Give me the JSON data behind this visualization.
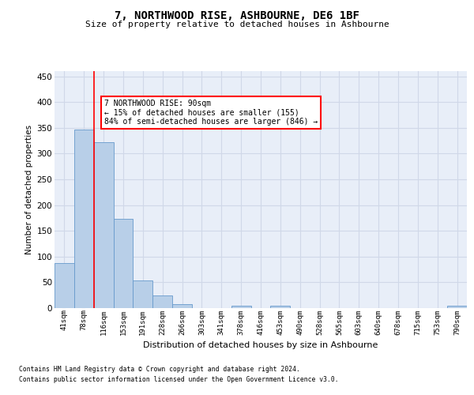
{
  "title1": "7, NORTHWOOD RISE, ASHBOURNE, DE6 1BF",
  "title2": "Size of property relative to detached houses in Ashbourne",
  "xlabel": "Distribution of detached houses by size in Ashbourne",
  "ylabel": "Number of detached properties",
  "categories": [
    "41sqm",
    "78sqm",
    "116sqm",
    "153sqm",
    "191sqm",
    "228sqm",
    "266sqm",
    "303sqm",
    "341sqm",
    "378sqm",
    "416sqm",
    "453sqm",
    "490sqm",
    "528sqm",
    "565sqm",
    "603sqm",
    "640sqm",
    "678sqm",
    "715sqm",
    "753sqm",
    "790sqm"
  ],
  "values": [
    88,
    347,
    322,
    174,
    53,
    25,
    8,
    0,
    0,
    5,
    0,
    4,
    0,
    0,
    0,
    0,
    0,
    0,
    0,
    0,
    4
  ],
  "bar_color": "#b8cfe8",
  "bar_edge_color": "#6699cc",
  "red_line_x": 1.5,
  "annotation_line1": "7 NORTHWOOD RISE: 90sqm",
  "annotation_line2": "← 15% of detached houses are smaller (155)",
  "annotation_line3": "84% of semi-detached houses are larger (846) →",
  "annotation_box_facecolor": "white",
  "annotation_box_edgecolor": "red",
  "footnote1": "Contains HM Land Registry data © Crown copyright and database right 2024.",
  "footnote2": "Contains public sector information licensed under the Open Government Licence v3.0.",
  "ylim_max": 460,
  "yticks": [
    0,
    50,
    100,
    150,
    200,
    250,
    300,
    350,
    400,
    450
  ],
  "grid_color": "#d0d8e8",
  "bg_color": "#e8eef8"
}
